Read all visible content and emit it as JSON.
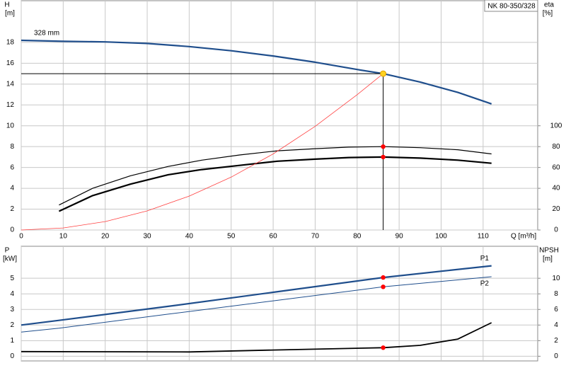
{
  "chart_data": [
    {
      "type": "line",
      "title": "NK 80-350/328",
      "ylabel": "H",
      "yunit": "[m]",
      "y2label": "eta",
      "y2unit": "[%]",
      "xlabel": "Q [m³/h]",
      "xlim": [
        0,
        123
      ],
      "xticks": [
        0,
        10,
        20,
        30,
        40,
        50,
        60,
        70,
        80,
        90,
        100,
        110
      ],
      "ylim": [
        0,
        22
      ],
      "yticks": [
        0,
        2,
        4,
        6,
        8,
        10,
        12,
        14,
        16,
        18
      ],
      "y2lim": [
        0,
        220
      ],
      "y2ticks": [
        0,
        20,
        40,
        60,
        80,
        100
      ],
      "grid": true,
      "series": [
        {
          "name": "328 mm",
          "color": "#1f4e8c",
          "width": 2.2,
          "x": [
            0,
            10,
            20,
            30,
            40,
            50,
            60,
            70,
            80,
            86.2,
            95,
            104,
            112
          ],
          "values": [
            18.2,
            18.1,
            18.05,
            17.9,
            17.6,
            17.2,
            16.7,
            16.1,
            15.4,
            15,
            14.2,
            13.2,
            12.1
          ]
        },
        {
          "color": "#000000",
          "width": 1.2,
          "axis": "y2",
          "x": [
            9,
            17,
            26,
            35,
            43,
            52,
            61,
            70,
            78,
            86.2,
            95,
            104,
            112
          ],
          "values": [
            24,
            40,
            52,
            61,
            67,
            72,
            76,
            78,
            79.5,
            80,
            79,
            77,
            73
          ]
        },
        {
          "color": "#000000",
          "width": 2.2,
          "axis": "y2",
          "x": [
            9,
            17,
            26,
            35,
            43,
            52,
            61,
            70,
            78,
            86.2,
            95,
            104,
            112
          ],
          "values": [
            18,
            33,
            44,
            53,
            58,
            62,
            66,
            68,
            69.5,
            70,
            69,
            67,
            64
          ]
        },
        {
          "color": "#ff4040",
          "width": 0.8,
          "x": [
            0,
            10,
            20,
            30,
            40,
            50,
            60,
            70,
            80,
            86.2
          ],
          "values": [
            0,
            0.2,
            0.81,
            1.83,
            3.25,
            5.07,
            7.3,
            9.94,
            12.98,
            15
          ]
        }
      ],
      "points": [
        {
          "x": 86.2,
          "y": 15,
          "color": "#ffd21f",
          "guides": true
        },
        {
          "x": 86.2,
          "y": 80,
          "axis": "y2",
          "color": "#ff0000"
        },
        {
          "x": 86.2,
          "y": 70,
          "axis": "y2",
          "color": "#ff0000"
        }
      ]
    },
    {
      "type": "line",
      "ylabel": "P",
      "yunit": "[kW]",
      "y2label": "NPSH",
      "y2unit": "[m]",
      "xlim": [
        0,
        123
      ],
      "xticks": [
        0,
        10,
        20,
        30,
        40,
        50,
        60,
        70,
        80,
        90,
        100,
        110
      ],
      "ylim": [
        -0.3,
        7.05
      ],
      "yticks": [
        0,
        1,
        2,
        3,
        4,
        5
      ],
      "y2lim": [
        -0.6,
        14.1
      ],
      "y2ticks": [
        0,
        2,
        4,
        6,
        8,
        10
      ],
      "grid": true,
      "series": [
        {
          "name": "P1",
          "color": "#1f4e8c",
          "width": 2.2,
          "x": [
            0,
            9,
            35,
            60,
            86.2,
            112
          ],
          "values": [
            2.0,
            2.3,
            3.2,
            4.1,
            5.05,
            5.8
          ]
        },
        {
          "name": "P2",
          "color": "#1f4e8c",
          "width": 1,
          "x": [
            0,
            9,
            35,
            60,
            86.2,
            112
          ],
          "values": [
            1.55,
            1.8,
            2.7,
            3.55,
            4.45,
            5.1
          ]
        },
        {
          "color": "#000000",
          "width": 1.8,
          "axis": "y2",
          "x": [
            0,
            40,
            60,
            86.2,
            95,
            104,
            112
          ],
          "values": [
            0.6,
            0.55,
            0.8,
            1.1,
            1.4,
            2.2,
            4.3
          ]
        }
      ],
      "points": [
        {
          "x": 86.2,
          "y": 5.05,
          "color": "#ff0000"
        },
        {
          "x": 86.2,
          "y": 4.45,
          "color": "#ff0000"
        },
        {
          "x": 86.2,
          "y": 1.1,
          "axis": "y2",
          "color": "#ff0000"
        }
      ]
    }
  ]
}
